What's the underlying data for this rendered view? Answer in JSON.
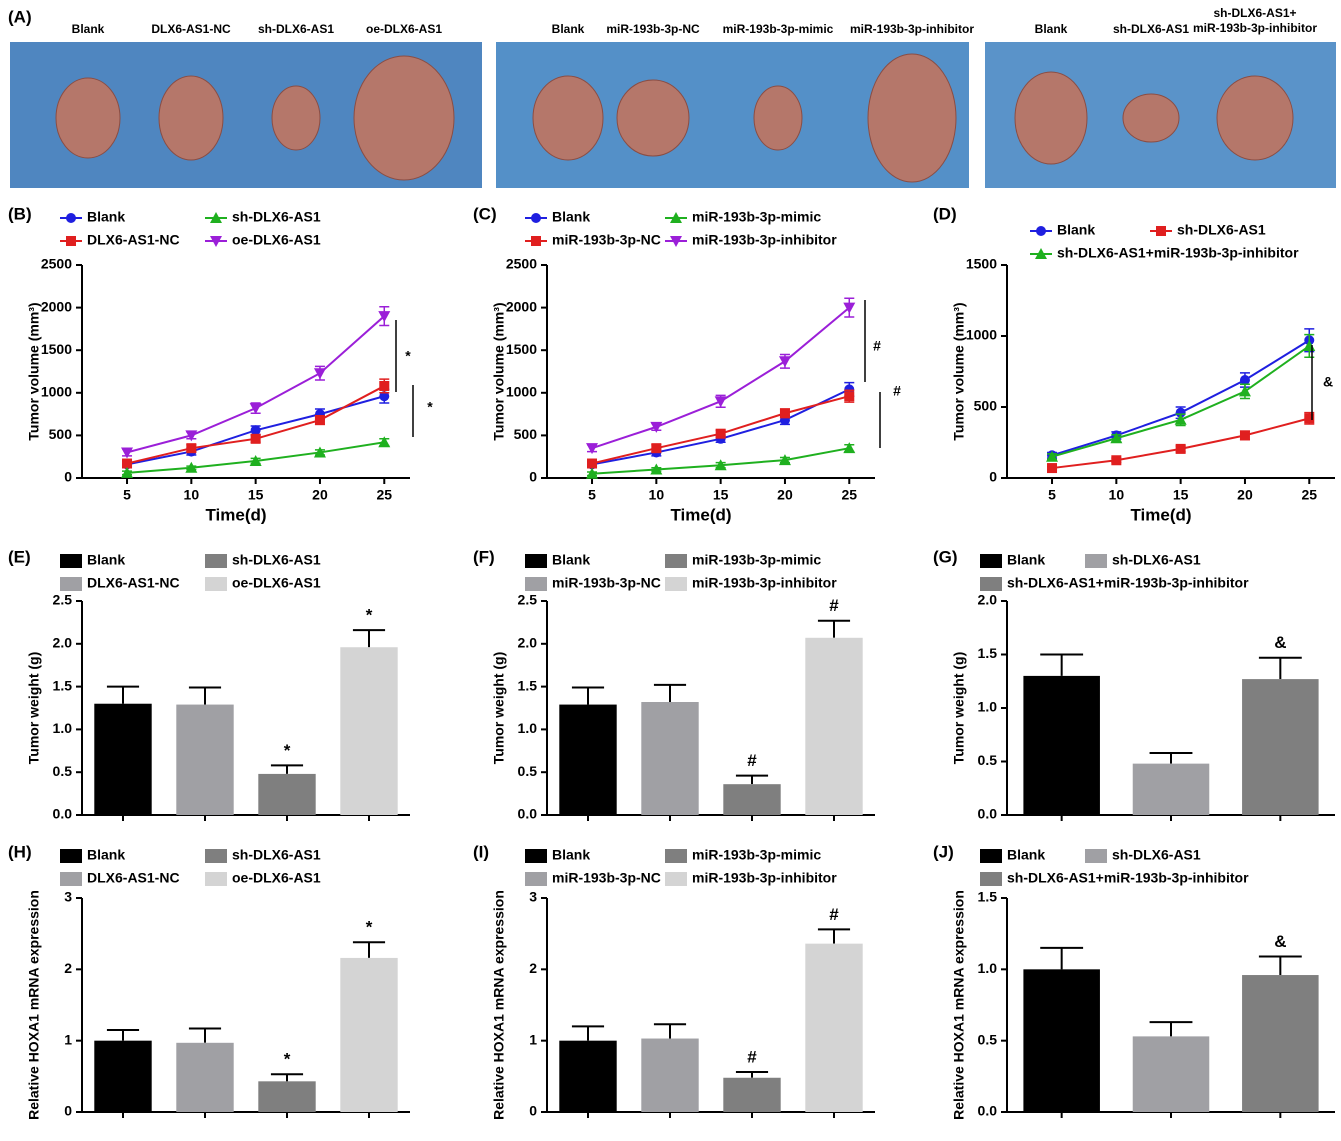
{
  "panel_a": {
    "label": "(A)",
    "groups": [
      [
        "Blank",
        "DLX6-AS1-NC",
        "sh-DLX6-AS1",
        "oe-DLX6-AS1"
      ],
      [
        "Blank",
        "miR-193b-3p-NC",
        "miR-193b-3p-mimic",
        "miR-193b-3p-inhibitor"
      ],
      [
        "Blank",
        "sh-DLX6-AS1",
        [
          "sh-DLX6-AS1+",
          "miR-193b-3p-inhibitor"
        ]
      ]
    ]
  },
  "chart_data": [
    {
      "type": "line",
      "label": "(B)",
      "x_label": "Time(d)",
      "y_label": "Tumor volume (mm³)",
      "x": [
        5,
        10,
        15,
        20,
        25
      ],
      "xlim": [
        1.5,
        27
      ],
      "xticks": [
        5,
        10,
        15,
        20,
        25
      ],
      "ylim": [
        0,
        2500
      ],
      "yticks": [
        0,
        500,
        1000,
        1500,
        2000,
        2500
      ],
      "annotations": [
        "*",
        "*"
      ],
      "series": [
        {
          "name": "Blank",
          "color": "#1f1fe0",
          "marker": "circle",
          "values": [
            160,
            310,
            560,
            750,
            960
          ],
          "errors": [
            40,
            40,
            50,
            60,
            80
          ]
        },
        {
          "name": "DLX6-AS1-NC",
          "color": "#e01f1f",
          "marker": "square",
          "values": [
            170,
            350,
            460,
            680,
            1080
          ],
          "errors": [
            30,
            40,
            40,
            50,
            80
          ]
        },
        {
          "name": "sh-DLX6-AS1",
          "color": "#1fb01f",
          "marker": "triangle-up",
          "values": [
            60,
            120,
            200,
            300,
            420
          ],
          "errors": [
            20,
            20,
            30,
            30,
            40
          ]
        },
        {
          "name": "oe-DLX6-AS1",
          "color": "#9b1fd8",
          "marker": "triangle-down",
          "values": [
            300,
            500,
            820,
            1230,
            1900
          ],
          "errors": [
            40,
            40,
            60,
            80,
            110
          ]
        }
      ]
    },
    {
      "type": "line",
      "label": "(C)",
      "x_label": "Time(d)",
      "y_label": "Tumor volume (mm³)",
      "x": [
        5,
        10,
        15,
        20,
        25
      ],
      "xlim": [
        1.5,
        27
      ],
      "xticks": [
        5,
        10,
        15,
        20,
        25
      ],
      "ylim": [
        0,
        2500
      ],
      "yticks": [
        0,
        500,
        1000,
        1500,
        2000,
        2500
      ],
      "annotations": [
        "#",
        "#"
      ],
      "series": [
        {
          "name": "Blank",
          "color": "#1f1fe0",
          "marker": "circle",
          "values": [
            160,
            300,
            460,
            680,
            1040
          ],
          "errors": [
            30,
            40,
            40,
            50,
            80
          ]
        },
        {
          "name": "miR-193b-3p-NC",
          "color": "#e01f1f",
          "marker": "square",
          "values": [
            170,
            350,
            520,
            760,
            960
          ],
          "errors": [
            30,
            40,
            40,
            50,
            70
          ]
        },
        {
          "name": "miR-193b-3p-mimic",
          "color": "#1fb01f",
          "marker": "triangle-up",
          "values": [
            50,
            100,
            150,
            210,
            350
          ],
          "errors": [
            20,
            20,
            30,
            30,
            40
          ]
        },
        {
          "name": "miR-193b-3p-inhibitor",
          "color": "#9b1fd8",
          "marker": "triangle-down",
          "values": [
            350,
            600,
            900,
            1370,
            2000
          ],
          "errors": [
            40,
            40,
            70,
            80,
            110
          ]
        }
      ]
    },
    {
      "type": "line",
      "label": "(D)",
      "x_label": "Time(d)",
      "y_label": "Tumor volume (mm³)",
      "x": [
        5,
        10,
        15,
        20,
        25
      ],
      "xlim": [
        1.5,
        27
      ],
      "xticks": [
        5,
        10,
        15,
        20,
        25
      ],
      "ylim": [
        0,
        1500
      ],
      "yticks": [
        0,
        500,
        1000,
        1500
      ],
      "annotations": [
        "&"
      ],
      "series": [
        {
          "name": "Blank",
          "color": "#1f1fe0",
          "marker": "circle",
          "values": [
            160,
            300,
            460,
            690,
            970
          ],
          "errors": [
            20,
            25,
            40,
            50,
            80
          ]
        },
        {
          "name": "sh-DLX6-AS1",
          "color": "#e01f1f",
          "marker": "square",
          "values": [
            70,
            125,
            205,
            300,
            420
          ],
          "errors": [
            10,
            15,
            20,
            30,
            40
          ]
        },
        {
          "name": "sh-DLX6-AS1+miR-193b-3p-inhibitor",
          "color": "#1fb01f",
          "marker": "triangle-up",
          "values": [
            150,
            280,
            410,
            610,
            930
          ],
          "errors": [
            20,
            25,
            40,
            50,
            80
          ]
        }
      ]
    },
    {
      "type": "bar",
      "label": "(E)",
      "y_label": "Tumor weight (g)",
      "categories": [
        "Blank",
        "DLX6-AS1-NC",
        "sh-DLX6-AS1",
        "oe-DLX6-AS1"
      ],
      "colors": [
        "#000000",
        "#a0a0a4",
        "#7f7f7f",
        "#d4d4d4"
      ],
      "values": [
        1.3,
        1.29,
        0.48,
        1.96
      ],
      "errors": [
        0.2,
        0.2,
        0.1,
        0.2
      ],
      "markers": [
        null,
        null,
        "*",
        "*"
      ],
      "ylim": [
        0,
        2.5
      ],
      "yticks": [
        {
          "value": 0,
          "label": "0.0"
        },
        0.5,
        {
          "value": 1,
          "label": "1.0"
        },
        1.5,
        {
          "value": 2,
          "label": "2.0"
        },
        2.5
      ]
    },
    {
      "type": "bar",
      "label": "(F)",
      "y_label": "Tumor weight (g)",
      "categories": [
        "Blank",
        "miR-193b-3p-NC",
        "miR-193b-3p-mimic",
        "miR-193b-3p-inhibitor"
      ],
      "colors": [
        "#000000",
        "#a0a0a4",
        "#7f7f7f",
        "#d4d4d4"
      ],
      "values": [
        1.29,
        1.32,
        0.36,
        2.07
      ],
      "errors": [
        0.2,
        0.2,
        0.1,
        0.2
      ],
      "markers": [
        null,
        null,
        "#",
        "#"
      ],
      "ylim": [
        0,
        2.5
      ],
      "yticks": [
        {
          "value": 0,
          "label": "0.0"
        },
        0.5,
        {
          "value": 1,
          "label": "1.0"
        },
        1.5,
        {
          "value": 2,
          "label": "2.0"
        },
        2.5
      ]
    },
    {
      "type": "bar",
      "label": "(G)",
      "y_label": "Tumor weight (g)",
      "categories": [
        "Blank",
        "sh-DLX6-AS1",
        "sh-DLX6-AS1+miR-193b-3p-inhibitor"
      ],
      "colors": [
        "#000000",
        "#a0a0a4",
        "#7f7f7f"
      ],
      "values": [
        1.3,
        0.48,
        1.27
      ],
      "errors": [
        0.2,
        0.1,
        0.2
      ],
      "markers": [
        null,
        null,
        "&"
      ],
      "ylim": [
        0,
        2
      ],
      "yticks": [
        {
          "value": 0,
          "label": "0.0"
        },
        0.5,
        {
          "value": 1,
          "label": "1.0"
        },
        1.5,
        {
          "value": 2,
          "label": "2.0"
        }
      ]
    },
    {
      "type": "bar",
      "label": "(H)",
      "y_label": "Relative HOXA1 mRNA expression",
      "categories": [
        "Blank",
        "DLX6-AS1-NC",
        "sh-DLX6-AS1",
        "oe-DLX6-AS1"
      ],
      "colors": [
        "#000000",
        "#a0a0a4",
        "#7f7f7f",
        "#d4d4d4"
      ],
      "values": [
        1.0,
        0.97,
        0.43,
        2.16
      ],
      "errors": [
        0.15,
        0.2,
        0.1,
        0.22
      ],
      "markers": [
        null,
        null,
        "*",
        "*"
      ],
      "ylim": [
        0,
        3
      ],
      "yticks": [
        0,
        1,
        2,
        3
      ]
    },
    {
      "type": "bar",
      "label": "(I)",
      "y_label": "Relative HOXA1 mRNA expression",
      "categories": [
        "Blank",
        "miR-193b-3p-NC",
        "miR-193b-3p-mimic",
        "miR-193b-3p-inhibitor"
      ],
      "colors": [
        "#000000",
        "#a0a0a4",
        "#7f7f7f",
        "#d4d4d4"
      ],
      "values": [
        1.0,
        1.03,
        0.48,
        2.36
      ],
      "errors": [
        0.2,
        0.2,
        0.08,
        0.2
      ],
      "markers": [
        null,
        null,
        "#",
        "#"
      ],
      "ylim": [
        0,
        3
      ],
      "yticks": [
        0,
        1,
        2,
        3
      ]
    },
    {
      "type": "bar",
      "label": "(J)",
      "y_label": "Relative HOXA1 mRNA expression",
      "categories": [
        "Blank",
        "sh-DLX6-AS1",
        "sh-DLX6-AS1+miR-193b-3p-inhibitor"
      ],
      "colors": [
        "#000000",
        "#a0a0a4",
        "#7f7f7f"
      ],
      "values": [
        1.0,
        0.53,
        0.96
      ],
      "errors": [
        0.15,
        0.1,
        0.13
      ],
      "markers": [
        null,
        null,
        "&"
      ],
      "ylim": [
        0,
        1.5
      ],
      "yticks": [
        {
          "value": 0,
          "label": "0.0"
        },
        0.5,
        {
          "value": 1,
          "label": "1.0"
        },
        1.5
      ]
    }
  ]
}
